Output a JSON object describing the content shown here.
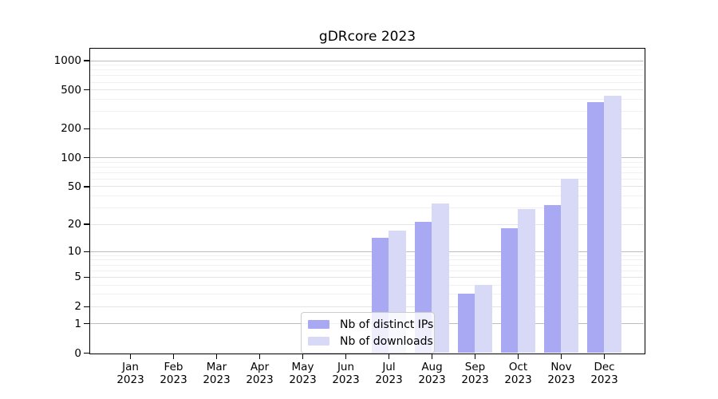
{
  "title": "gDRcore 2023",
  "chart_data": {
    "type": "bar",
    "title": "gDRcore 2023",
    "categories": [
      "Jan",
      "Feb",
      "Mar",
      "Apr",
      "May",
      "Jun",
      "Jul",
      "Aug",
      "Sep",
      "Oct",
      "Nov",
      "Dec"
    ],
    "category_year": "2023",
    "series": [
      {
        "name": "Nb of distinct IPs",
        "color": "#a9a9f3",
        "values": [
          0,
          0,
          0,
          0,
          0,
          0,
          14,
          21,
          3,
          18,
          32,
          375
        ]
      },
      {
        "name": "Nb of downloads",
        "color": "#d8d8f7",
        "values": [
          0,
          0,
          0,
          0,
          0,
          0,
          17,
          33,
          4,
          29,
          60,
          435
        ]
      }
    ],
    "y_axis": {
      "scale": "log1p",
      "ticks": [
        0,
        1,
        2,
        5,
        10,
        20,
        50,
        100,
        200,
        500,
        1000
      ],
      "ylim": [
        0,
        1316
      ]
    },
    "x_axis": {
      "tick_label_line2": "2023"
    },
    "legend": {
      "position": "inside-bottom-center",
      "entries": [
        "Nb of distinct IPs",
        "Nb of downloads"
      ]
    },
    "grid": "horizontal log major and minor gridlines",
    "colors": {
      "major_grid": "#bdbdbd",
      "mid_grid": "#e4e4e4",
      "minor_grid": "#f1f1f1",
      "spine": "#000000"
    }
  }
}
